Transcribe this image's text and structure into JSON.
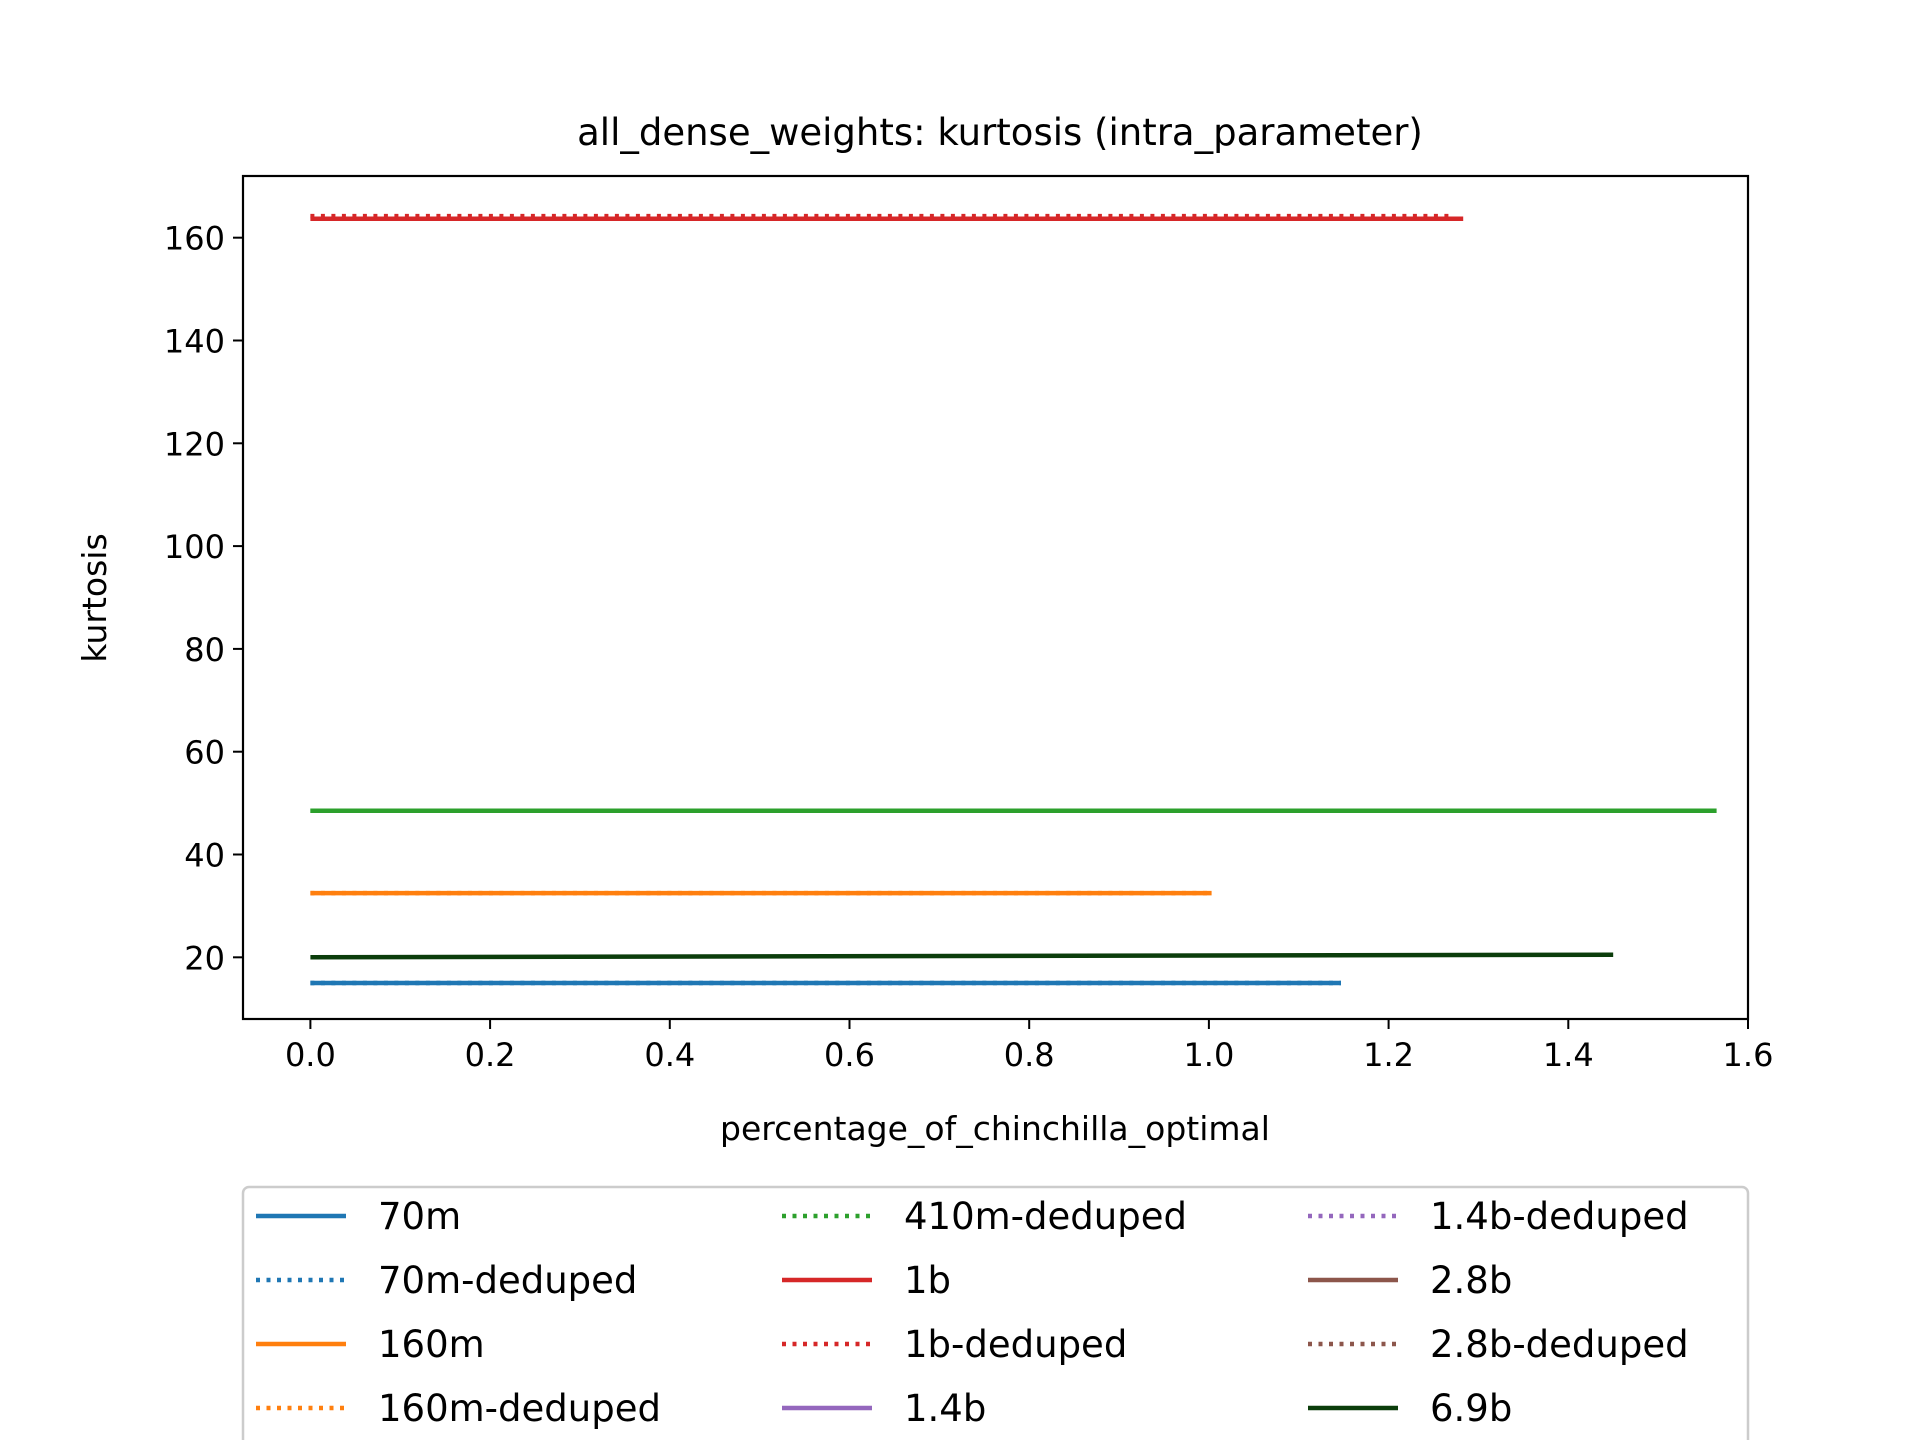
{
  "chart_data": {
    "type": "line",
    "title": "all_dense_weights: kurtosis (intra_parameter)",
    "xlabel": "percentage_of_chinchilla_optimal",
    "ylabel": "kurtosis",
    "xlim": [
      -0.075,
      1.6
    ],
    "ylim": [
      8,
      172
    ],
    "xticks": [
      0.0,
      0.2,
      0.4,
      0.6,
      0.8,
      1.0,
      1.2,
      1.4,
      1.6
    ],
    "xtick_labels": [
      "0.0",
      "0.2",
      "0.4",
      "0.6",
      "0.8",
      "1.0",
      "1.2",
      "1.4",
      "1.6"
    ],
    "yticks": [
      20,
      40,
      60,
      80,
      100,
      120,
      140,
      160
    ],
    "ytick_labels": [
      "20",
      "40",
      "60",
      "80",
      "100",
      "120",
      "140",
      "160"
    ],
    "grid": false,
    "legend_position": "below the plot, 3 columns",
    "series": [
      {
        "name": "70m",
        "color": "#1f77b4",
        "style": "solid",
        "x": [
          0.0,
          1.147
        ],
        "y": [
          15.0,
          15.0
        ]
      },
      {
        "name": "70m-deduped",
        "color": "#1f77b4",
        "style": "dotted",
        "x": [
          0.0,
          1.147
        ],
        "y": [
          15.0,
          15.0
        ]
      },
      {
        "name": "160m",
        "color": "#ff7f0e",
        "style": "solid",
        "x": [
          0.0,
          1.003
        ],
        "y": [
          32.5,
          32.5
        ]
      },
      {
        "name": "160m-deduped",
        "color": "#ff7f0e",
        "style": "dotted",
        "x": [
          0.0,
          1.003
        ],
        "y": [
          32.5,
          32.5
        ]
      },
      {
        "name": "410m-deduped",
        "color": "#2ca02c",
        "style": "dotted",
        "x": [
          0.0,
          1.565
        ],
        "y": [
          48.5,
          48.5
        ]
      },
      {
        "name": "1b",
        "color": "#d62728",
        "style": "solid",
        "x": [
          0.0,
          1.283
        ],
        "y": [
          163.7,
          163.7
        ]
      },
      {
        "name": "1b-deduped",
        "color": "#d62728",
        "style": "dotted",
        "x": [
          0.0,
          1.27
        ],
        "y": [
          164.2,
          164.2
        ]
      },
      {
        "name": "1.4b",
        "color": "#9467bd",
        "style": "solid",
        "x": [],
        "y": []
      },
      {
        "name": "1.4b-deduped",
        "color": "#9467bd",
        "style": "dotted",
        "x": [],
        "y": []
      },
      {
        "name": "2.8b",
        "color": "#8c564b",
        "style": "solid",
        "x": [],
        "y": []
      },
      {
        "name": "2.8b-deduped",
        "color": "#8c564b",
        "style": "dotted",
        "x": [],
        "y": []
      },
      {
        "name": "6.9b",
        "color": "#0b3d0b",
        "style": "solid",
        "x": [
          0.0,
          1.45
        ],
        "y": [
          20.0,
          20.5
        ]
      }
    ],
    "extra_lines": [
      {
        "color": "#2ca02c",
        "style": "solid",
        "x": [
          0.0,
          1.565
        ],
        "y": [
          48.5,
          48.5
        ]
      }
    ]
  }
}
